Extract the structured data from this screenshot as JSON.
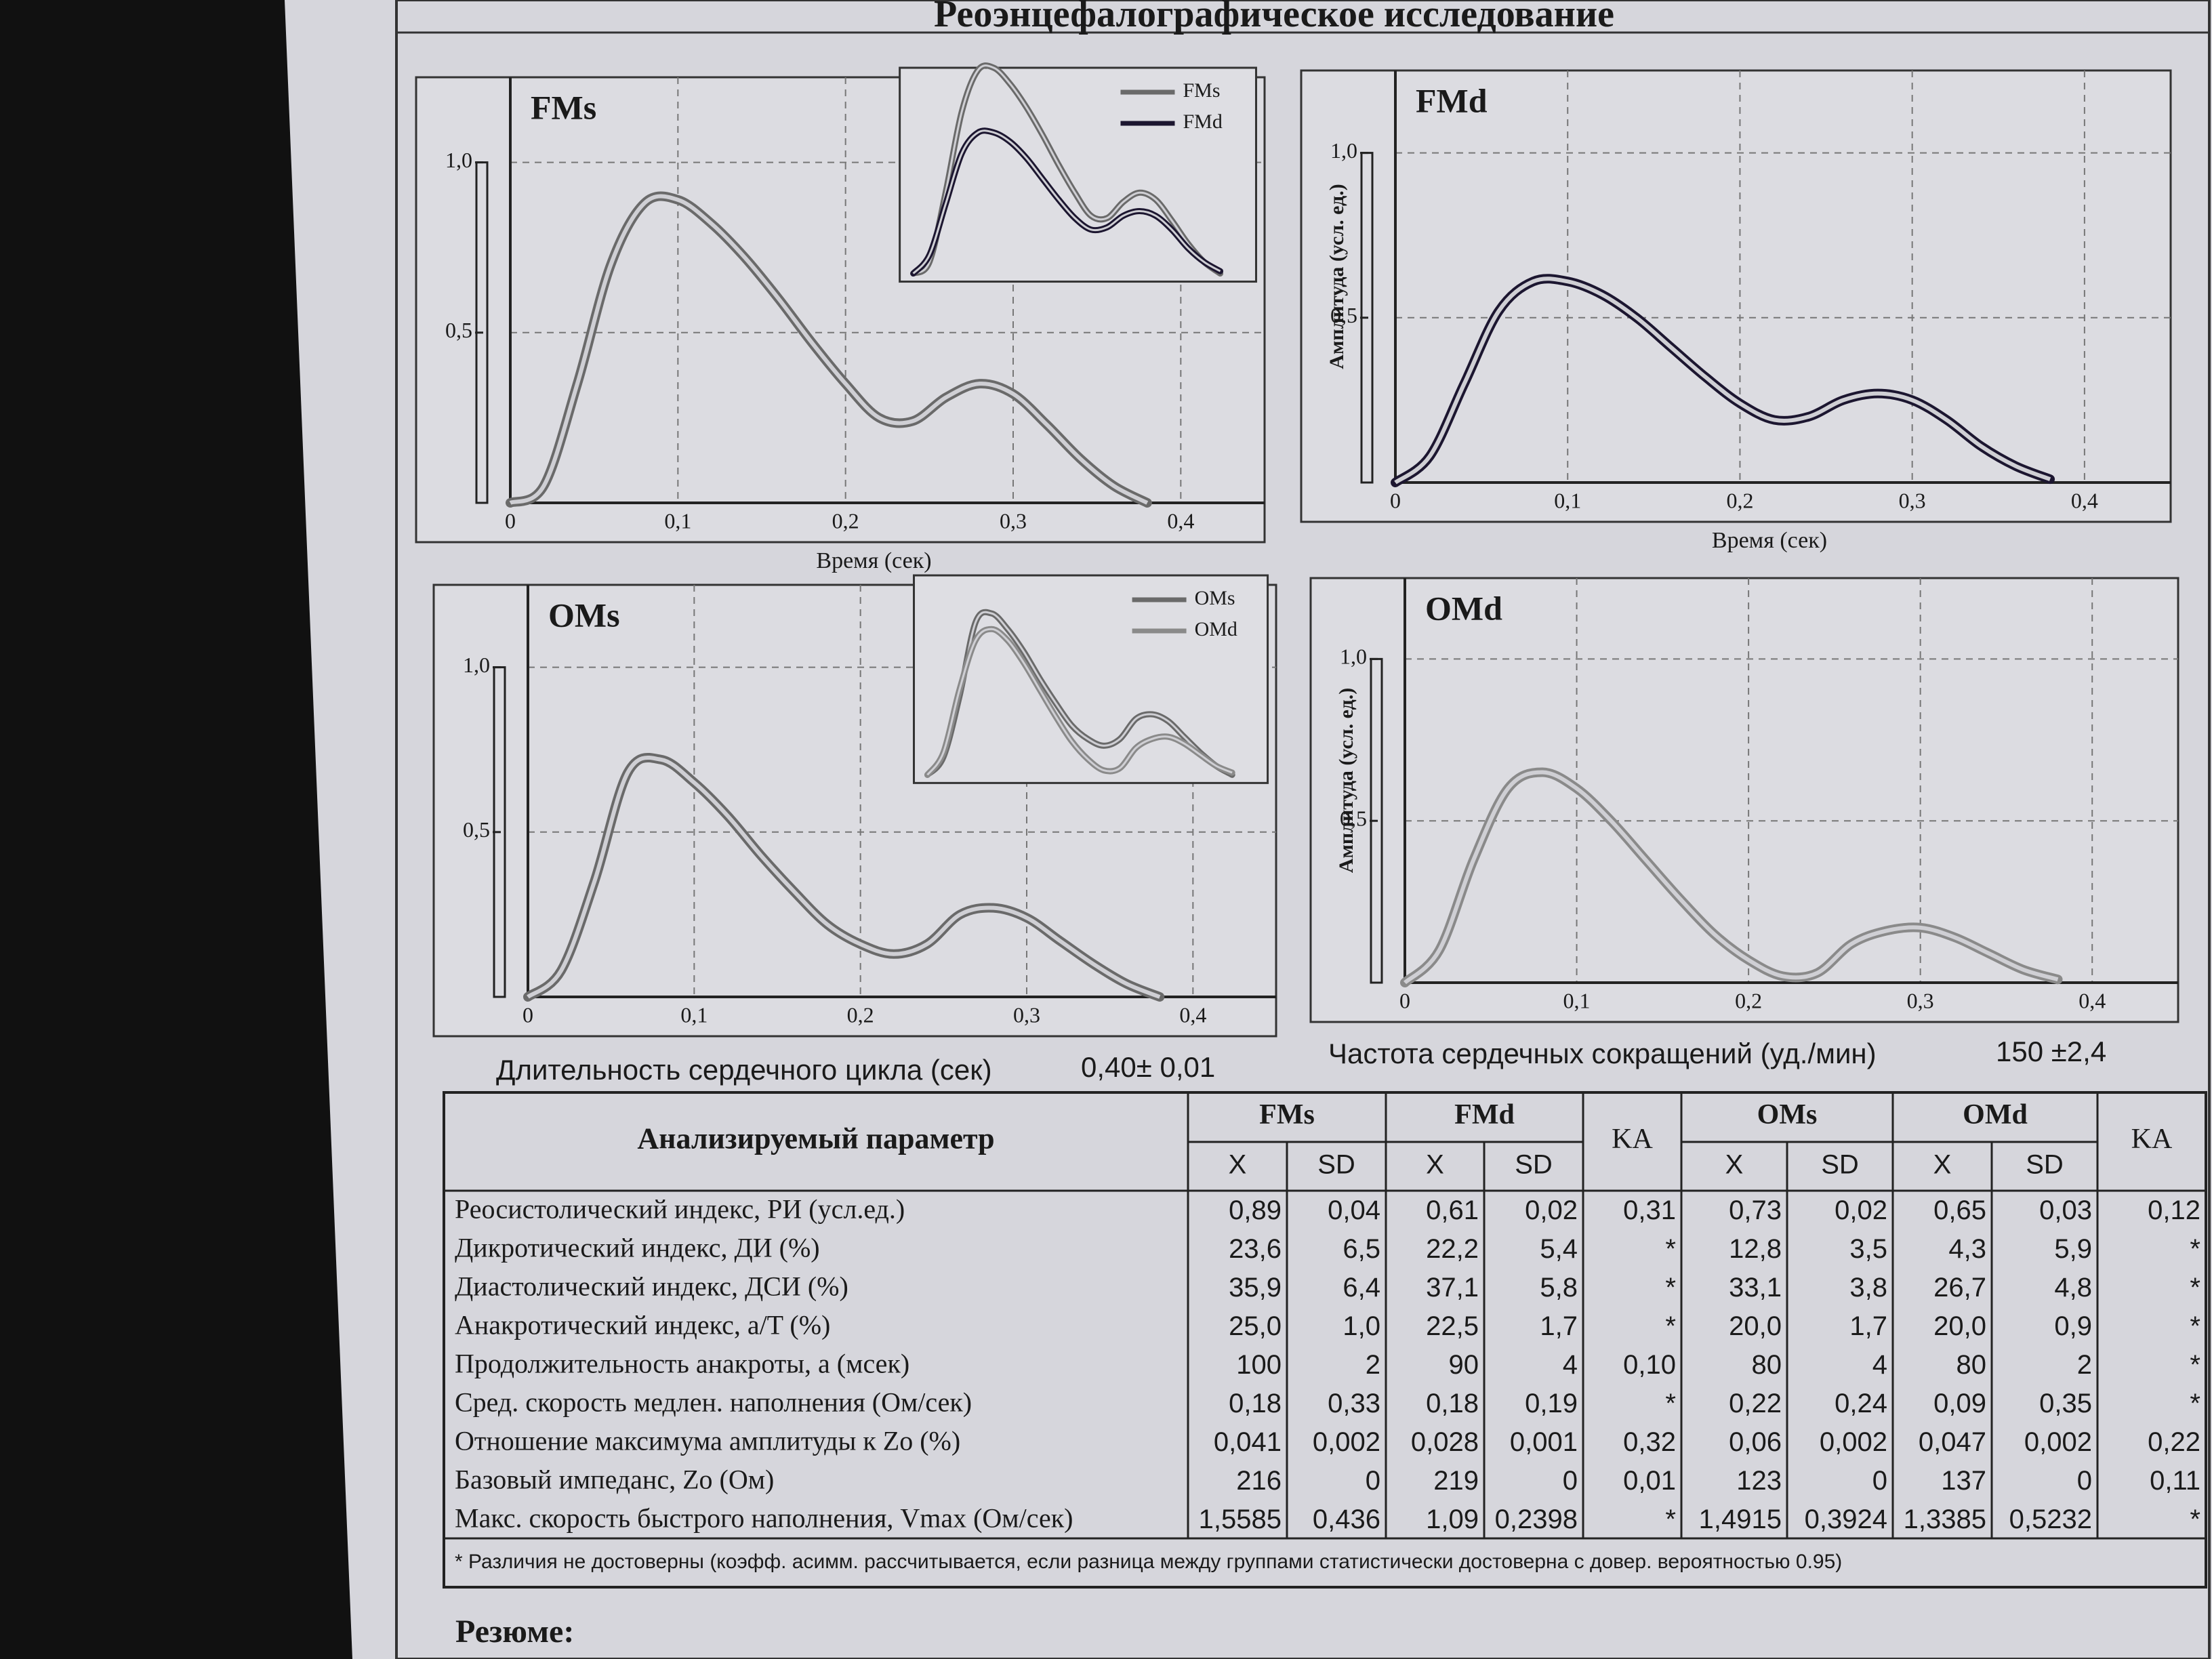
{
  "title": "Реоэнцефалографическое исследование",
  "chart_data": [
    {
      "type": "line",
      "title": "FMs",
      "xlabel": "Время (сек)",
      "inset": true,
      "x": [
        0,
        0.02,
        0.04,
        0.06,
        0.08,
        0.1,
        0.12,
        0.14,
        0.16,
        0.18,
        0.2,
        0.22,
        0.24,
        0.26,
        0.28,
        0.3,
        0.32,
        0.34,
        0.36,
        0.38
      ],
      "series": [
        {
          "name": "FMs",
          "color": "#6a6a6a",
          "values": [
            0,
            0.05,
            0.35,
            0.7,
            0.88,
            0.89,
            0.82,
            0.72,
            0.6,
            0.47,
            0.35,
            0.25,
            0.24,
            0.31,
            0.35,
            0.32,
            0.23,
            0.13,
            0.05,
            0
          ]
        }
      ],
      "xlim": [
        0,
        0.45
      ],
      "ylim": [
        0,
        1.25
      ],
      "xticks": [
        0,
        {
          "value": 0.1,
          "label": "0,1"
        },
        {
          "value": 0.2,
          "label": "0,2"
        },
        {
          "value": 0.3,
          "label": "0,3"
        },
        {
          "value": 0.4,
          "label": "0,4"
        }
      ],
      "yticks": [
        {
          "value": 0.5,
          "label": "0,5"
        },
        {
          "value": 1.0,
          "label": "1,0"
        }
      ],
      "grid": true
    },
    {
      "type": "line",
      "title": "FMd",
      "xlabel": "Время (сек)",
      "ylabel": "Амплитуда (усл. ед.)",
      "x": [
        0,
        0.02,
        0.04,
        0.06,
        0.08,
        0.1,
        0.12,
        0.14,
        0.16,
        0.18,
        0.2,
        0.22,
        0.24,
        0.26,
        0.28,
        0.3,
        0.32,
        0.34,
        0.36,
        0.38
      ],
      "series": [
        {
          "name": "FMd",
          "color": "#1c1630",
          "values": [
            0,
            0.08,
            0.3,
            0.52,
            0.61,
            0.61,
            0.57,
            0.5,
            0.41,
            0.32,
            0.24,
            0.19,
            0.2,
            0.25,
            0.27,
            0.25,
            0.19,
            0.11,
            0.05,
            0.01
          ]
        }
      ],
      "xlim": [
        0,
        0.45
      ],
      "ylim": [
        0,
        1.25
      ],
      "xticks": [
        0,
        {
          "value": 0.1,
          "label": "0,1"
        },
        {
          "value": 0.2,
          "label": "0,2"
        },
        {
          "value": 0.3,
          "label": "0,3"
        },
        {
          "value": 0.4,
          "label": "0,4"
        }
      ],
      "yticks": [
        {
          "value": 0.5,
          "label": "0,5"
        },
        {
          "value": 1.0,
          "label": "1,0"
        }
      ],
      "grid": true
    },
    {
      "type": "line",
      "title": "OMs",
      "inset": true,
      "x": [
        0,
        0.02,
        0.04,
        0.06,
        0.08,
        0.1,
        0.12,
        0.14,
        0.16,
        0.18,
        0.2,
        0.22,
        0.24,
        0.26,
        0.28,
        0.3,
        0.32,
        0.34,
        0.36,
        0.38
      ],
      "series": [
        {
          "name": "OMs",
          "color": "#6a6a6a",
          "values": [
            0,
            0.08,
            0.35,
            0.68,
            0.72,
            0.65,
            0.55,
            0.43,
            0.32,
            0.22,
            0.16,
            0.13,
            0.16,
            0.25,
            0.27,
            0.24,
            0.17,
            0.1,
            0.04,
            0
          ]
        }
      ],
      "xlim": [
        0,
        0.45
      ],
      "ylim": [
        0,
        1.25
      ],
      "xticks": [
        0,
        {
          "value": 0.1,
          "label": "0,1"
        },
        {
          "value": 0.2,
          "label": "0,2"
        },
        {
          "value": 0.3,
          "label": "0,3"
        },
        {
          "value": 0.4,
          "label": "0,4"
        }
      ],
      "yticks": [
        {
          "value": 0.5,
          "label": "0,5"
        },
        {
          "value": 1.0,
          "label": "1,0"
        }
      ],
      "grid": true
    },
    {
      "type": "line",
      "title": "OMd",
      "ylabel": "Амплитуда (усл. ед.)",
      "x": [
        0,
        0.02,
        0.04,
        0.06,
        0.08,
        0.1,
        0.12,
        0.14,
        0.16,
        0.18,
        0.2,
        0.22,
        0.24,
        0.26,
        0.28,
        0.3,
        0.32,
        0.34,
        0.36,
        0.38
      ],
      "series": [
        {
          "name": "OMd",
          "color": "#8a8a8a",
          "values": [
            0,
            0.1,
            0.38,
            0.6,
            0.65,
            0.6,
            0.5,
            0.38,
            0.26,
            0.15,
            0.07,
            0.02,
            0.03,
            0.12,
            0.16,
            0.17,
            0.14,
            0.09,
            0.04,
            0.01
          ]
        }
      ],
      "xlim": [
        0,
        0.45
      ],
      "ylim": [
        0,
        1.25
      ],
      "xticks": [
        0,
        {
          "value": 0.1,
          "label": "0,1"
        },
        {
          "value": 0.2,
          "label": "0,2"
        },
        {
          "value": 0.3,
          "label": "0,3"
        },
        {
          "value": 0.4,
          "label": "0,4"
        }
      ],
      "yticks": [
        {
          "value": 0.5,
          "label": "0,5"
        },
        {
          "value": 1.0,
          "label": "1,0"
        }
      ],
      "grid": true
    }
  ],
  "duration": {
    "label": "Длительность сердечного цикла (сек)",
    "value": "0,40± 0,01"
  },
  "heart_rate": {
    "label": "Частота сердечных сокращений (уд./мин)",
    "value": "150 ±2,4"
  },
  "table": {
    "header": "Анализируемый параметр",
    "groups": [
      "FMs",
      "FMd",
      "KA",
      "OMs",
      "OMd",
      "KA"
    ],
    "sub": [
      "X",
      "SD"
    ],
    "rows": [
      [
        "Реосистолический индекс, РИ (усл.ед.)",
        "0,89",
        "0,04",
        "0,61",
        "0,02",
        "0,31",
        "0,73",
        "0,02",
        "0,65",
        "0,03",
        "0,12"
      ],
      [
        "Дикротический индекс, ДИ (%)",
        "23,6",
        "6,5",
        "22,2",
        "5,4",
        "*",
        "12,8",
        "3,5",
        "4,3",
        "5,9",
        "*"
      ],
      [
        "Диастолический индекс, ДСИ (%)",
        "35,9",
        "6,4",
        "37,1",
        "5,8",
        "*",
        "33,1",
        "3,8",
        "26,7",
        "4,8",
        "*"
      ],
      [
        "Анакротический индекс, a/T (%)",
        "25,0",
        "1,0",
        "22,5",
        "1,7",
        "*",
        "20,0",
        "1,7",
        "20,0",
        "0,9",
        "*"
      ],
      [
        "Продолжительность анакроты, a (мсек)",
        "100",
        "2",
        "90",
        "4",
        "0,10",
        "80",
        "4",
        "80",
        "2",
        "*"
      ],
      [
        "Сред. скорость медлен. наполнения (Ом/сек)",
        "0,18",
        "0,33",
        "0,18",
        "0,19",
        "*",
        "0,22",
        "0,24",
        "0,09",
        "0,35",
        "*"
      ],
      [
        "Отношение максимума амплитуды к Zo (%)",
        "0,041",
        "0,002",
        "0,028",
        "0,001",
        "0,32",
        "0,06",
        "0,002",
        "0,047",
        "0,002",
        "0,22"
      ],
      [
        "Базовый импеданс, Zo (Ом)",
        "216",
        "0",
        "219",
        "0",
        "0,01",
        "123",
        "0",
        "137",
        "0",
        "0,11"
      ],
      [
        "Макс. скорость быстрого наполнения, Vmax (Ом/сек)",
        "1,5585",
        "0,436",
        "1,09",
        "0,2398",
        "*",
        "1,4915",
        "0,3924",
        "1,3385",
        "0,5232",
        "*"
      ]
    ],
    "footnote": "* Различия не достоверны (коэфф. асимм. рассчитывается, если разница между группами статистически достоверна с довер. вероятностью 0.95)"
  },
  "summary": "Резюме:"
}
